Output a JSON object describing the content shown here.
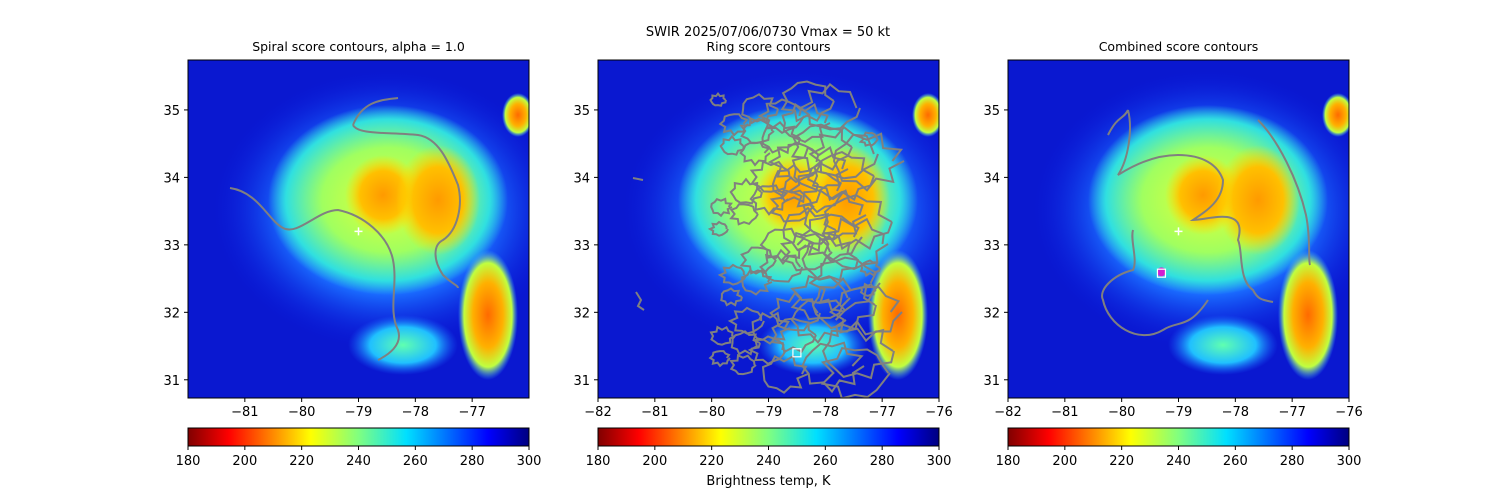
{
  "chart_data": {
    "type": "heatmap",
    "suptitle": "SWIR  2025/07/06/0730    Vmax = 50 kt",
    "xlim": [
      -82,
      -76
    ],
    "ylim": [
      30.73,
      35.74
    ],
    "panels": [
      {
        "title": "Spiral score contours, alpha =  1.0",
        "xticks": [
          "−81",
          "−80",
          "−79",
          "−78",
          "−77"
        ],
        "xtick_values": [
          -81,
          -80,
          -79,
          -78,
          -77
        ],
        "yticks": [
          "35",
          "34",
          "33",
          "32",
          "31"
        ],
        "ytick_values": [
          35,
          34,
          33,
          32,
          31
        ],
        "markers": [
          {
            "type": "plus",
            "lon": -79.0,
            "lat": 33.2,
            "color": "#ffffff"
          }
        ]
      },
      {
        "title": "Ring score contours",
        "xticks": [
          "−82",
          "−81",
          "−80",
          "−79",
          "−78",
          "−77",
          "−76"
        ],
        "xtick_values": [
          -82,
          -81,
          -80,
          -79,
          -78,
          -77,
          -76
        ],
        "yticks": [
          "35",
          "34",
          "33",
          "32",
          "31"
        ],
        "ytick_values": [
          35,
          34,
          33,
          32,
          31
        ],
        "markers": [
          {
            "type": "square",
            "lon": -78.5,
            "lat": 31.4,
            "color": "#ffffff"
          }
        ]
      },
      {
        "title": "Combined score contours",
        "xticks": [
          "−82",
          "−81",
          "−80",
          "−79",
          "−78",
          "−77",
          "−76"
        ],
        "xtick_values": [
          -82,
          -81,
          -80,
          -79,
          -78,
          -77,
          -76
        ],
        "yticks": [
          "35",
          "34",
          "33",
          "32",
          "31"
        ],
        "ytick_values": [
          35,
          34,
          33,
          32,
          31
        ],
        "markers": [
          {
            "type": "plus",
            "lon": -79.0,
            "lat": 33.2,
            "color": "#ffffff"
          },
          {
            "type": "circle",
            "lon": -79.3,
            "lat": 32.6,
            "color": "#d020d0"
          },
          {
            "type": "square",
            "lon": -79.3,
            "lat": 32.58,
            "color": "#ffffff"
          }
        ]
      }
    ],
    "colorbar": {
      "label": "Brightness temp, K",
      "range": [
        180,
        300
      ],
      "ticks": [
        "180",
        "200",
        "220",
        "240",
        "260",
        "280",
        "300"
      ],
      "tick_values": [
        180,
        200,
        220,
        240,
        260,
        280,
        300
      ],
      "colormap": "jet_r"
    },
    "contour_color": "#808080"
  }
}
